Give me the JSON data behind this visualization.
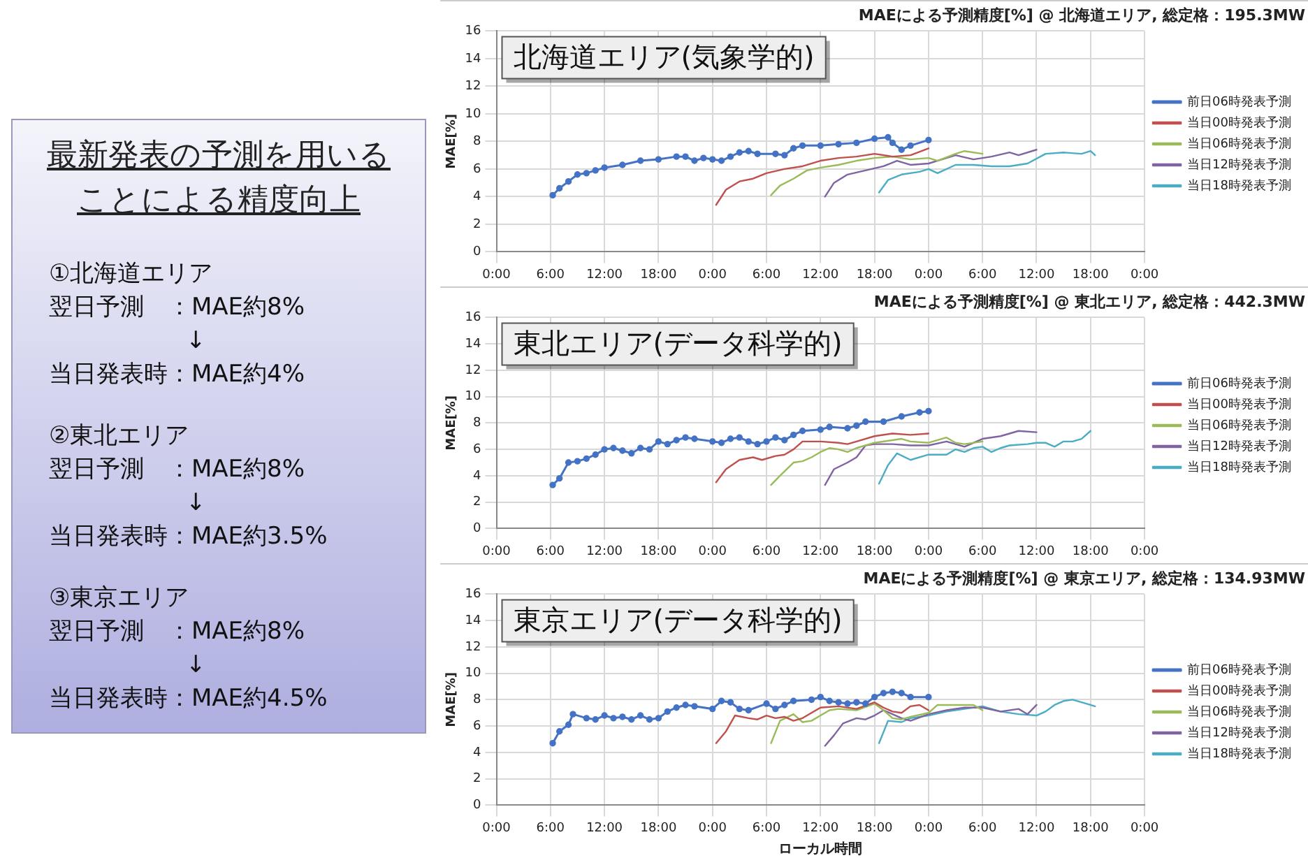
{
  "chart_data": [
    {
      "type": "other",
      "title": "最新発表の予測を用いることによる精度向上",
      "annotations": [
        "①北海道エリア",
        "翌日予測　：MAE約8%",
        "↓",
        "当日発表時：MAE約4%",
        "②東北エリア",
        "翌日予測　：MAE約8%",
        "↓",
        "当日発表時：MAE約3.5%",
        "③東京エリア",
        "翌日予測　：MAE約8%",
        "↓",
        "当日発表時：MAE約4.5%"
      ]
    },
    {
      "type": "line",
      "title": "MAEによる予測精度[%] @ 北海道エリア, 総定格：195.3MW",
      "ylabel": "MAE[%]",
      "annotations": [
        "北海道エリア(気象学的)"
      ],
      "xlim": [
        "2000-01-01T00:00",
        "2000-01-04T00:00"
      ],
      "xticks": [
        {
          "value": "2000-01-01T00:00",
          "label": "0:00"
        },
        {
          "value": "2000-01-01T06:00",
          "label": "6:00"
        },
        {
          "value": "2000-01-01T12:00",
          "label": "12:00"
        },
        {
          "value": "2000-01-01T18:00",
          "label": "18:00"
        },
        {
          "value": "2000-01-02T00:00",
          "label": "0:00"
        },
        {
          "value": "2000-01-02T06:00",
          "label": "6:00"
        },
        {
          "value": "2000-01-02T12:00",
          "label": "12:00"
        },
        {
          "value": "2000-01-02T18:00",
          "label": "18:00"
        },
        {
          "value": "2000-01-03T00:00",
          "label": "0:00"
        },
        {
          "value": "2000-01-03T06:00",
          "label": "6:00"
        },
        {
          "value": "2000-01-03T12:00",
          "label": "12:00"
        },
        {
          "value": "2000-01-03T18:00",
          "label": "18:00"
        },
        {
          "value": "2000-01-04T00:00",
          "label": "0:00"
        }
      ],
      "ylim": [
        0,
        16
      ],
      "yticks": [
        0,
        2,
        4,
        6,
        8,
        10,
        12,
        14,
        16
      ],
      "grid": true,
      "legend": "right",
      "line_style": "solid",
      "series": [
        {
          "name": "前日06時発表予測",
          "color": "#4472c4",
          "marker": "circle",
          "x": [
            "2000-01-01T06:15",
            "2000-01-01T07:00",
            "2000-01-01T08:00",
            "2000-01-01T09:00",
            "2000-01-01T10:00",
            "2000-01-01T11:00",
            "2000-01-01T12:00",
            "2000-01-01T14:00",
            "2000-01-01T16:00",
            "2000-01-01T18:00",
            "2000-01-01T20:00",
            "2000-01-01T21:00",
            "2000-01-01T22:00",
            "2000-01-01T23:00",
            "2000-01-02T00:00",
            "2000-01-02T01:00",
            "2000-01-02T02:00",
            "2000-01-02T03:00",
            "2000-01-02T04:00",
            "2000-01-02T05:00",
            "2000-01-02T07:00",
            "2000-01-02T08:00",
            "2000-01-02T09:00",
            "2000-01-02T10:00",
            "2000-01-02T12:00",
            "2000-01-02T14:00",
            "2000-01-02T16:00",
            "2000-01-02T18:00",
            "2000-01-02T19:30",
            "2000-01-02T20:00",
            "2000-01-02T21:00",
            "2000-01-02T22:00",
            "2000-01-03T00:00"
          ],
          "values": [
            4.1,
            4.6,
            5.1,
            5.6,
            5.7,
            5.9,
            6.1,
            6.3,
            6.6,
            6.7,
            6.9,
            6.9,
            6.6,
            6.8,
            6.7,
            6.6,
            6.9,
            7.2,
            7.3,
            7.1,
            7.1,
            7.0,
            7.5,
            7.7,
            7.7,
            7.8,
            7.9,
            8.2,
            8.3,
            7.9,
            7.4,
            7.7,
            8.1
          ]
        },
        {
          "name": "当日00時発表予測",
          "color": "#c0504d",
          "x": [
            "2000-01-02T00:24",
            "2000-01-02T01:30",
            "2000-01-02T03:00",
            "2000-01-02T04:30",
            "2000-01-02T06:00",
            "2000-01-02T08:00",
            "2000-01-02T10:00",
            "2000-01-02T12:00",
            "2000-01-02T14:00",
            "2000-01-02T16:00",
            "2000-01-02T18:00",
            "2000-01-02T20:00",
            "2000-01-02T22:00",
            "2000-01-03T00:00"
          ],
          "values": [
            3.4,
            4.5,
            5.1,
            5.3,
            5.7,
            6.0,
            6.2,
            6.6,
            6.8,
            6.9,
            7.1,
            6.9,
            7.0,
            7.5
          ]
        },
        {
          "name": "当日06時発表予測",
          "color": "#9bbb59",
          "x": [
            "2000-01-02T06:30",
            "2000-01-02T07:30",
            "2000-01-02T09:00",
            "2000-01-02T10:30",
            "2000-01-02T12:00",
            "2000-01-02T14:00",
            "2000-01-02T16:00",
            "2000-01-02T18:00",
            "2000-01-02T20:00",
            "2000-01-02T22:00",
            "2000-01-03T00:00",
            "2000-01-03T01:00",
            "2000-01-03T03:00",
            "2000-01-03T04:00",
            "2000-01-03T06:00"
          ],
          "values": [
            4.1,
            4.8,
            5.3,
            5.9,
            6.1,
            6.3,
            6.6,
            6.8,
            6.9,
            6.7,
            6.8,
            6.6,
            7.1,
            7.3,
            7.1
          ]
        },
        {
          "name": "当日12時発表予測",
          "color": "#8064a2",
          "x": [
            "2000-01-02T12:30",
            "2000-01-02T13:30",
            "2000-01-02T15:00",
            "2000-01-02T17:00",
            "2000-01-02T19:00",
            "2000-01-02T20:30",
            "2000-01-02T22:00",
            "2000-01-03T00:00",
            "2000-01-03T02:00",
            "2000-01-03T03:00",
            "2000-01-03T05:00",
            "2000-01-03T07:00",
            "2000-01-03T09:00",
            "2000-01-03T10:00",
            "2000-01-03T12:00"
          ],
          "values": [
            4.0,
            5.0,
            5.6,
            5.9,
            6.2,
            6.6,
            6.3,
            6.4,
            6.8,
            7.0,
            6.7,
            6.9,
            7.2,
            7.0,
            7.4
          ]
        },
        {
          "name": "当日18時発表予測",
          "color": "#4bacc6",
          "x": [
            "2000-01-02T18:30",
            "2000-01-02T19:30",
            "2000-01-02T21:00",
            "2000-01-02T23:00",
            "2000-01-03T00:00",
            "2000-01-03T01:00",
            "2000-01-03T03:00",
            "2000-01-03T05:00",
            "2000-01-03T07:00",
            "2000-01-03T09:00",
            "2000-01-03T11:00",
            "2000-01-03T13:00",
            "2000-01-03T15:00",
            "2000-01-03T17:00",
            "2000-01-03T18:00",
            "2000-01-03T18:30"
          ],
          "values": [
            4.3,
            5.2,
            5.6,
            5.8,
            6.0,
            5.7,
            6.3,
            6.3,
            6.2,
            6.2,
            6.4,
            7.1,
            7.2,
            7.1,
            7.3,
            7.0
          ]
        }
      ]
    },
    {
      "type": "line",
      "title": "MAEによる予測精度[%] @ 東北エリア, 総定格：442.3MW",
      "ylabel": "MAE[%]",
      "annotations": [
        "東北エリア(データ科学的)"
      ],
      "xlim": [
        "2000-01-01T00:00",
        "2000-01-04T00:00"
      ],
      "xticks": [
        {
          "value": "2000-01-01T00:00",
          "label": "0:00"
        },
        {
          "value": "2000-01-01T06:00",
          "label": "6:00"
        },
        {
          "value": "2000-01-01T12:00",
          "label": "12:00"
        },
        {
          "value": "2000-01-01T18:00",
          "label": "18:00"
        },
        {
          "value": "2000-01-02T00:00",
          "label": "0:00"
        },
        {
          "value": "2000-01-02T06:00",
          "label": "6:00"
        },
        {
          "value": "2000-01-02T12:00",
          "label": "12:00"
        },
        {
          "value": "2000-01-02T18:00",
          "label": "18:00"
        },
        {
          "value": "2000-01-03T00:00",
          "label": "0:00"
        },
        {
          "value": "2000-01-03T06:00",
          "label": "6:00"
        },
        {
          "value": "2000-01-03T12:00",
          "label": "12:00"
        },
        {
          "value": "2000-01-03T18:00",
          "label": "18:00"
        },
        {
          "value": "2000-01-04T00:00",
          "label": "0:00"
        }
      ],
      "ylim": [
        0,
        16
      ],
      "yticks": [
        0,
        2,
        4,
        6,
        8,
        10,
        12,
        14,
        16
      ],
      "grid": true,
      "legend": "right",
      "line_style": "solid",
      "series": [
        {
          "name": "前日06時発表予測",
          "color": "#4472c4",
          "marker": "circle",
          "x": [
            "2000-01-01T06:15",
            "2000-01-01T07:00",
            "2000-01-01T08:00",
            "2000-01-01T09:00",
            "2000-01-01T10:00",
            "2000-01-01T11:00",
            "2000-01-01T12:00",
            "2000-01-01T13:00",
            "2000-01-01T14:00",
            "2000-01-01T15:00",
            "2000-01-01T16:00",
            "2000-01-01T17:00",
            "2000-01-01T18:00",
            "2000-01-01T19:00",
            "2000-01-01T20:00",
            "2000-01-01T21:00",
            "2000-01-01T22:00",
            "2000-01-02T00:00",
            "2000-01-02T01:00",
            "2000-01-02T02:00",
            "2000-01-02T03:00",
            "2000-01-02T04:00",
            "2000-01-02T05:00",
            "2000-01-02T06:00",
            "2000-01-02T07:00",
            "2000-01-02T08:00",
            "2000-01-02T09:00",
            "2000-01-02T10:00",
            "2000-01-02T12:00",
            "2000-01-02T13:00",
            "2000-01-02T15:00",
            "2000-01-02T16:00",
            "2000-01-02T17:00",
            "2000-01-02T19:00",
            "2000-01-02T21:00",
            "2000-01-02T23:00",
            "2000-01-03T00:00"
          ],
          "values": [
            3.3,
            3.8,
            5.0,
            5.1,
            5.3,
            5.6,
            6.0,
            6.1,
            5.9,
            5.7,
            6.1,
            6.0,
            6.6,
            6.4,
            6.7,
            6.9,
            6.8,
            6.6,
            6.5,
            6.8,
            6.9,
            6.6,
            6.4,
            6.6,
            6.9,
            6.7,
            7.1,
            7.4,
            7.5,
            7.7,
            7.6,
            7.8,
            8.1,
            8.1,
            8.5,
            8.8,
            8.9
          ]
        },
        {
          "name": "当日00時発表予測",
          "color": "#c0504d",
          "x": [
            "2000-01-02T00:24",
            "2000-01-02T01:30",
            "2000-01-02T03:00",
            "2000-01-02T04:30",
            "2000-01-02T05:30",
            "2000-01-02T07:00",
            "2000-01-02T08:00",
            "2000-01-02T09:00",
            "2000-01-02T10:00",
            "2000-01-02T12:00",
            "2000-01-02T14:00",
            "2000-01-02T15:00",
            "2000-01-02T16:00",
            "2000-01-02T18:00",
            "2000-01-02T20:00",
            "2000-01-02T22:00",
            "2000-01-03T00:00"
          ],
          "values": [
            3.5,
            4.5,
            5.2,
            5.4,
            5.2,
            5.5,
            5.6,
            6.0,
            6.6,
            6.6,
            6.5,
            6.4,
            6.6,
            7.0,
            7.2,
            7.1,
            7.2
          ]
        },
        {
          "name": "当日06時発表予測",
          "color": "#9bbb59",
          "x": [
            "2000-01-02T06:30",
            "2000-01-02T07:30",
            "2000-01-02T09:00",
            "2000-01-02T10:00",
            "2000-01-02T11:00",
            "2000-01-02T12:00",
            "2000-01-02T13:00",
            "2000-01-02T14:00",
            "2000-01-02T15:00",
            "2000-01-02T16:00",
            "2000-01-02T18:00",
            "2000-01-02T20:00",
            "2000-01-02T21:00",
            "2000-01-02T22:00",
            "2000-01-03T00:00",
            "2000-01-03T02:00",
            "2000-01-03T03:00",
            "2000-01-03T04:00",
            "2000-01-03T06:00"
          ],
          "values": [
            3.3,
            4.0,
            5.0,
            5.1,
            5.4,
            5.8,
            6.1,
            6.0,
            5.8,
            6.1,
            6.5,
            6.7,
            6.8,
            6.6,
            6.5,
            6.9,
            6.5,
            6.4,
            6.6
          ]
        },
        {
          "name": "当日12時発表予測",
          "color": "#8064a2",
          "x": [
            "2000-01-02T12:30",
            "2000-01-02T13:30",
            "2000-01-02T15:00",
            "2000-01-02T16:00",
            "2000-01-02T17:00",
            "2000-01-02T18:00",
            "2000-01-02T20:00",
            "2000-01-02T22:00",
            "2000-01-03T00:00",
            "2000-01-03T02:00",
            "2000-01-03T03:00",
            "2000-01-03T04:00",
            "2000-01-03T06:00",
            "2000-01-03T08:00",
            "2000-01-03T10:00",
            "2000-01-03T12:00"
          ],
          "values": [
            3.3,
            4.5,
            5.0,
            5.4,
            6.3,
            6.4,
            6.4,
            6.3,
            6.3,
            6.6,
            6.4,
            6.2,
            6.8,
            7.0,
            7.4,
            7.3
          ]
        },
        {
          "name": "当日18時発表予測",
          "color": "#4bacc6",
          "x": [
            "2000-01-02T18:30",
            "2000-01-02T19:30",
            "2000-01-02T20:30",
            "2000-01-02T22:00",
            "2000-01-03T00:00",
            "2000-01-03T02:00",
            "2000-01-03T03:00",
            "2000-01-03T04:00",
            "2000-01-03T05:00",
            "2000-01-03T06:00",
            "2000-01-03T07:00",
            "2000-01-03T08:00",
            "2000-01-03T09:00",
            "2000-01-03T11:00",
            "2000-01-03T12:00",
            "2000-01-03T13:00",
            "2000-01-03T14:00",
            "2000-01-03T15:00",
            "2000-01-03T16:00",
            "2000-01-03T17:00",
            "2000-01-03T18:00"
          ],
          "values": [
            3.4,
            4.8,
            5.7,
            5.2,
            5.6,
            5.6,
            6.0,
            5.8,
            6.1,
            6.2,
            5.8,
            6.1,
            6.3,
            6.4,
            6.5,
            6.5,
            6.2,
            6.6,
            6.6,
            6.8,
            7.4
          ]
        }
      ]
    },
    {
      "type": "line",
      "title": "MAEによる予測精度[%] @ 東京エリア, 総定格：134.93MW",
      "xlabel": "ローカル時間",
      "ylabel": "MAE[%]",
      "annotations": [
        "東京エリア(データ科学的)"
      ],
      "xlim": [
        "2000-01-01T00:00",
        "2000-01-04T00:00"
      ],
      "xticks": [
        {
          "value": "2000-01-01T00:00",
          "label": "0:00"
        },
        {
          "value": "2000-01-01T06:00",
          "label": "6:00"
        },
        {
          "value": "2000-01-01T12:00",
          "label": "12:00"
        },
        {
          "value": "2000-01-01T18:00",
          "label": "18:00"
        },
        {
          "value": "2000-01-02T00:00",
          "label": "0:00"
        },
        {
          "value": "2000-01-02T06:00",
          "label": "6:00"
        },
        {
          "value": "2000-01-02T12:00",
          "label": "12:00"
        },
        {
          "value": "2000-01-02T18:00",
          "label": "18:00"
        },
        {
          "value": "2000-01-03T00:00",
          "label": "0:00"
        },
        {
          "value": "2000-01-03T06:00",
          "label": "6:00"
        },
        {
          "value": "2000-01-03T12:00",
          "label": "12:00"
        },
        {
          "value": "2000-01-03T18:00",
          "label": "18:00"
        },
        {
          "value": "2000-01-04T00:00",
          "label": "0:00"
        }
      ],
      "ylim": [
        0,
        16
      ],
      "yticks": [
        0,
        2,
        4,
        6,
        8,
        10,
        12,
        14,
        16
      ],
      "grid": true,
      "legend": "right",
      "line_style": "solid",
      "series": [
        {
          "name": "前日06時発表予測",
          "color": "#4472c4",
          "marker": "circle",
          "x": [
            "2000-01-01T06:15",
            "2000-01-01T07:00",
            "2000-01-01T08:00",
            "2000-01-01T08:30",
            "2000-01-01T10:00",
            "2000-01-01T11:00",
            "2000-01-01T12:00",
            "2000-01-01T13:00",
            "2000-01-01T14:00",
            "2000-01-01T15:00",
            "2000-01-01T16:00",
            "2000-01-01T17:00",
            "2000-01-01T18:00",
            "2000-01-01T19:00",
            "2000-01-01T20:00",
            "2000-01-01T21:00",
            "2000-01-01T22:00",
            "2000-01-02T00:00",
            "2000-01-02T01:00",
            "2000-01-02T02:00",
            "2000-01-02T03:00",
            "2000-01-02T04:00",
            "2000-01-02T06:00",
            "2000-01-02T07:00",
            "2000-01-02T08:00",
            "2000-01-02T09:00",
            "2000-01-02T11:00",
            "2000-01-02T12:00",
            "2000-01-02T13:00",
            "2000-01-02T14:00",
            "2000-01-02T15:00",
            "2000-01-02T16:00",
            "2000-01-02T17:00",
            "2000-01-02T18:00",
            "2000-01-02T19:00",
            "2000-01-02T20:00",
            "2000-01-02T21:00",
            "2000-01-02T22:00",
            "2000-01-03T00:00"
          ],
          "values": [
            4.7,
            5.6,
            6.1,
            6.9,
            6.6,
            6.5,
            6.8,
            6.6,
            6.7,
            6.5,
            6.8,
            6.5,
            6.6,
            7.1,
            7.4,
            7.6,
            7.5,
            7.3,
            7.9,
            7.8,
            7.3,
            7.2,
            7.7,
            7.3,
            7.6,
            7.9,
            8.0,
            8.2,
            7.9,
            7.8,
            7.7,
            7.8,
            7.7,
            8.2,
            8.5,
            8.6,
            8.5,
            8.2,
            8.2
          ]
        },
        {
          "name": "当日00時発表予測",
          "color": "#c0504d",
          "x": [
            "2000-01-02T00:24",
            "2000-01-02T01:30",
            "2000-01-02T02:30",
            "2000-01-02T04:00",
            "2000-01-02T05:00",
            "2000-01-02T06:00",
            "2000-01-02T07:00",
            "2000-01-02T08:00",
            "2000-01-02T09:00",
            "2000-01-02T10:00",
            "2000-01-02T11:00",
            "2000-01-02T12:00",
            "2000-01-02T14:00",
            "2000-01-02T16:00",
            "2000-01-02T18:00",
            "2000-01-02T19:00",
            "2000-01-02T20:00",
            "2000-01-02T21:00",
            "2000-01-02T22:00",
            "2000-01-02T23:00",
            "2000-01-03T00:00"
          ],
          "values": [
            4.7,
            5.6,
            6.8,
            6.6,
            6.5,
            6.8,
            6.6,
            6.7,
            6.4,
            6.6,
            7.0,
            7.4,
            7.5,
            7.3,
            7.8,
            7.4,
            7.1,
            7.0,
            7.5,
            7.6,
            7.2
          ]
        },
        {
          "name": "当日06時発表予測",
          "color": "#9bbb59",
          "x": [
            "2000-01-02T06:30",
            "2000-01-02T07:30",
            "2000-01-02T09:00",
            "2000-01-02T10:00",
            "2000-01-02T11:00",
            "2000-01-02T12:00",
            "2000-01-02T13:00",
            "2000-01-02T14:00",
            "2000-01-02T16:00",
            "2000-01-02T18:00",
            "2000-01-02T19:00",
            "2000-01-02T20:00",
            "2000-01-02T21:00",
            "2000-01-02T22:00",
            "2000-01-03T00:00",
            "2000-01-03T01:00",
            "2000-01-03T03:00",
            "2000-01-03T05:00",
            "2000-01-03T06:00"
          ],
          "values": [
            4.7,
            6.4,
            6.9,
            6.3,
            6.4,
            6.8,
            7.2,
            7.3,
            7.2,
            7.7,
            7.2,
            6.6,
            6.5,
            6.7,
            7.0,
            7.6,
            7.6,
            7.6,
            7.2
          ]
        },
        {
          "name": "当日12時発表予測",
          "color": "#8064a2",
          "x": [
            "2000-01-02T12:30",
            "2000-01-02T13:30",
            "2000-01-02T14:30",
            "2000-01-02T16:00",
            "2000-01-02T17:00",
            "2000-01-02T18:00",
            "2000-01-02T19:00",
            "2000-01-02T20:00",
            "2000-01-02T21:00",
            "2000-01-02T22:00",
            "2000-01-03T00:00",
            "2000-01-03T02:00",
            "2000-01-03T04:00",
            "2000-01-03T06:00",
            "2000-01-03T08:00",
            "2000-01-03T10:00",
            "2000-01-03T11:00",
            "2000-01-03T12:00"
          ],
          "values": [
            4.5,
            5.3,
            6.2,
            6.6,
            6.5,
            6.8,
            7.2,
            6.9,
            6.6,
            6.4,
            6.9,
            7.2,
            7.4,
            7.4,
            7.1,
            7.3,
            6.9,
            7.6
          ]
        },
        {
          "name": "当日18時発表予測",
          "color": "#4bacc6",
          "x": [
            "2000-01-02T18:30",
            "2000-01-02T19:30",
            "2000-01-02T21:00",
            "2000-01-02T22:00",
            "2000-01-03T00:00",
            "2000-01-03T02:00",
            "2000-01-03T04:00",
            "2000-01-03T06:00",
            "2000-01-03T08:00",
            "2000-01-03T10:00",
            "2000-01-03T12:00",
            "2000-01-03T13:00",
            "2000-01-03T14:00",
            "2000-01-03T15:00",
            "2000-01-03T16:00",
            "2000-01-03T17:00",
            "2000-01-03T18:00",
            "2000-01-03T18:30"
          ],
          "values": [
            4.7,
            6.4,
            6.3,
            6.6,
            6.8,
            7.1,
            7.3,
            7.5,
            7.1,
            6.9,
            6.8,
            7.1,
            7.6,
            7.9,
            8.0,
            7.8,
            7.6,
            7.5
          ]
        }
      ]
    }
  ]
}
